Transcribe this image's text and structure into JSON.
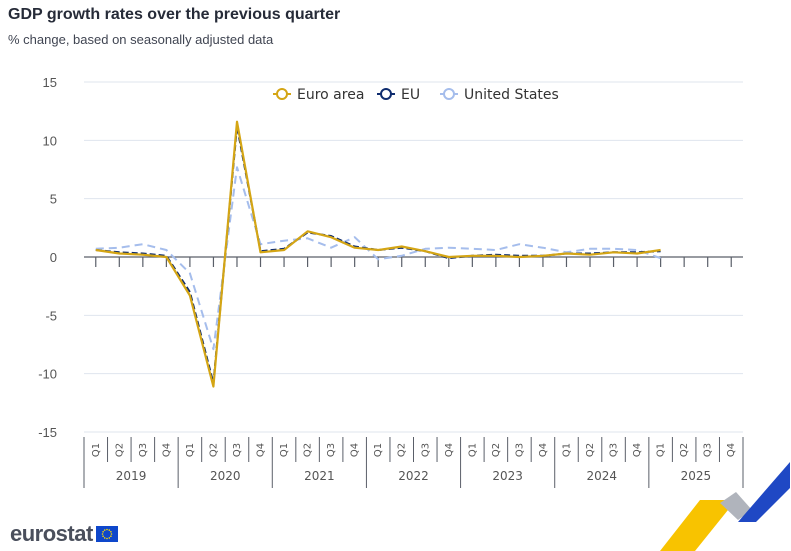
{
  "header": {
    "title": "GDP growth rates over the previous quarter",
    "subtitle": "% change, based on seasonally adjusted data"
  },
  "branding": {
    "logo_text": "eurostat",
    "logo_icon": "eu-flag-icon"
  },
  "colors": {
    "euro_area": "#d4a514",
    "eu": "#0e2c6e",
    "us": "#a5bdec",
    "grid": "#dfe4ee",
    "axis": "#5a5f69"
  },
  "chart_data": {
    "type": "line",
    "title": "GDP growth rates over the previous quarter",
    "subtitle": "% change, based on seasonally adjusted data",
    "xlabel": "",
    "ylabel": "",
    "ylim": [
      -15,
      15
    ],
    "yticks": [
      15,
      10,
      5,
      0,
      -5,
      -10,
      -15
    ],
    "grid": true,
    "legend_position": "top-center",
    "years": [
      "2019",
      "2020",
      "2021",
      "2022",
      "2023",
      "2024",
      "2025"
    ],
    "quarters": [
      "Q1",
      "Q2",
      "Q3",
      "Q4"
    ],
    "x": [
      "2019Q1",
      "2019Q2",
      "2019Q3",
      "2019Q4",
      "2020Q1",
      "2020Q2",
      "2020Q3",
      "2020Q4",
      "2021Q1",
      "2021Q2",
      "2021Q3",
      "2021Q4",
      "2022Q1",
      "2022Q2",
      "2022Q3",
      "2022Q4",
      "2023Q1",
      "2023Q2",
      "2023Q3",
      "2023Q4",
      "2024Q1",
      "2024Q2",
      "2024Q3",
      "2024Q4",
      "2025Q1",
      "2025Q2",
      "2025Q3",
      "2025Q4"
    ],
    "series": [
      {
        "name": "Euro area",
        "style": "solid",
        "values": [
          0.6,
          0.3,
          0.2,
          0.0,
          -3.3,
          -11.1,
          11.6,
          0.4,
          0.6,
          2.2,
          1.7,
          0.8,
          0.6,
          0.9,
          0.5,
          0.0,
          0.1,
          0.1,
          0.0,
          0.1,
          0.3,
          0.2,
          0.4,
          0.3,
          0.6,
          null,
          null,
          null
        ]
      },
      {
        "name": "EU",
        "style": "dashed",
        "values": [
          0.6,
          0.4,
          0.3,
          0.1,
          -3.0,
          -10.8,
          11.2,
          0.5,
          0.7,
          2.1,
          1.8,
          0.9,
          0.6,
          0.8,
          0.5,
          -0.1,
          0.1,
          0.2,
          0.1,
          0.1,
          0.3,
          0.3,
          0.4,
          0.4,
          0.5,
          null,
          null,
          null
        ]
      },
      {
        "name": "United States",
        "style": "dashed",
        "values": [
          0.7,
          0.8,
          1.1,
          0.6,
          -1.4,
          -7.9,
          7.7,
          1.1,
          1.4,
          1.6,
          0.8,
          1.7,
          -0.2,
          0.1,
          0.7,
          0.8,
          0.7,
          0.6,
          1.1,
          0.8,
          0.4,
          0.7,
          0.7,
          0.6,
          -0.1,
          null,
          null,
          null
        ]
      }
    ]
  }
}
